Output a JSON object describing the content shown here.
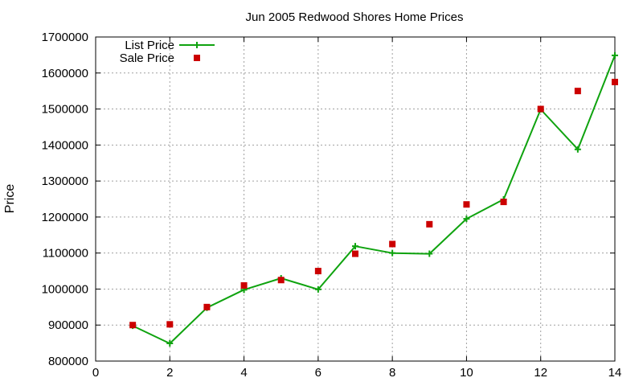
{
  "chart_data": {
    "type": "line",
    "title": "Jun 2005 Redwood Shores Home Prices",
    "xlabel": "",
    "ylabel": "Price",
    "xlim": [
      0,
      14
    ],
    "ylim": [
      800000,
      1700000
    ],
    "xticks": [
      0,
      2,
      4,
      6,
      8,
      10,
      12,
      14
    ],
    "yticks": [
      800000,
      900000,
      1000000,
      1100000,
      1200000,
      1300000,
      1400000,
      1500000,
      1600000,
      1700000
    ],
    "grid": true,
    "legend_position": "top-left",
    "series": [
      {
        "name": "List Price",
        "style": "line-with-plus-markers",
        "color": "#0fa30f",
        "x": [
          1,
          2,
          3,
          4,
          5,
          6,
          7,
          8,
          9,
          10,
          11,
          12,
          13,
          14
        ],
        "values": [
          898000,
          849000,
          948000,
          998000,
          1030000,
          999000,
          1119000,
          1100000,
          1098000,
          1195000,
          1249000,
          1499000,
          1388000,
          1649000
        ]
      },
      {
        "name": "Sale Price",
        "style": "square-points",
        "color": "#cc0000",
        "x": [
          1,
          2,
          3,
          4,
          5,
          6,
          7,
          8,
          9,
          10,
          11,
          12,
          13,
          14
        ],
        "values": [
          900000,
          902000,
          950000,
          1010000,
          1025000,
          1050000,
          1098000,
          1125000,
          1180000,
          1235000,
          1242000,
          1500000,
          1550000,
          1575000
        ]
      }
    ]
  }
}
